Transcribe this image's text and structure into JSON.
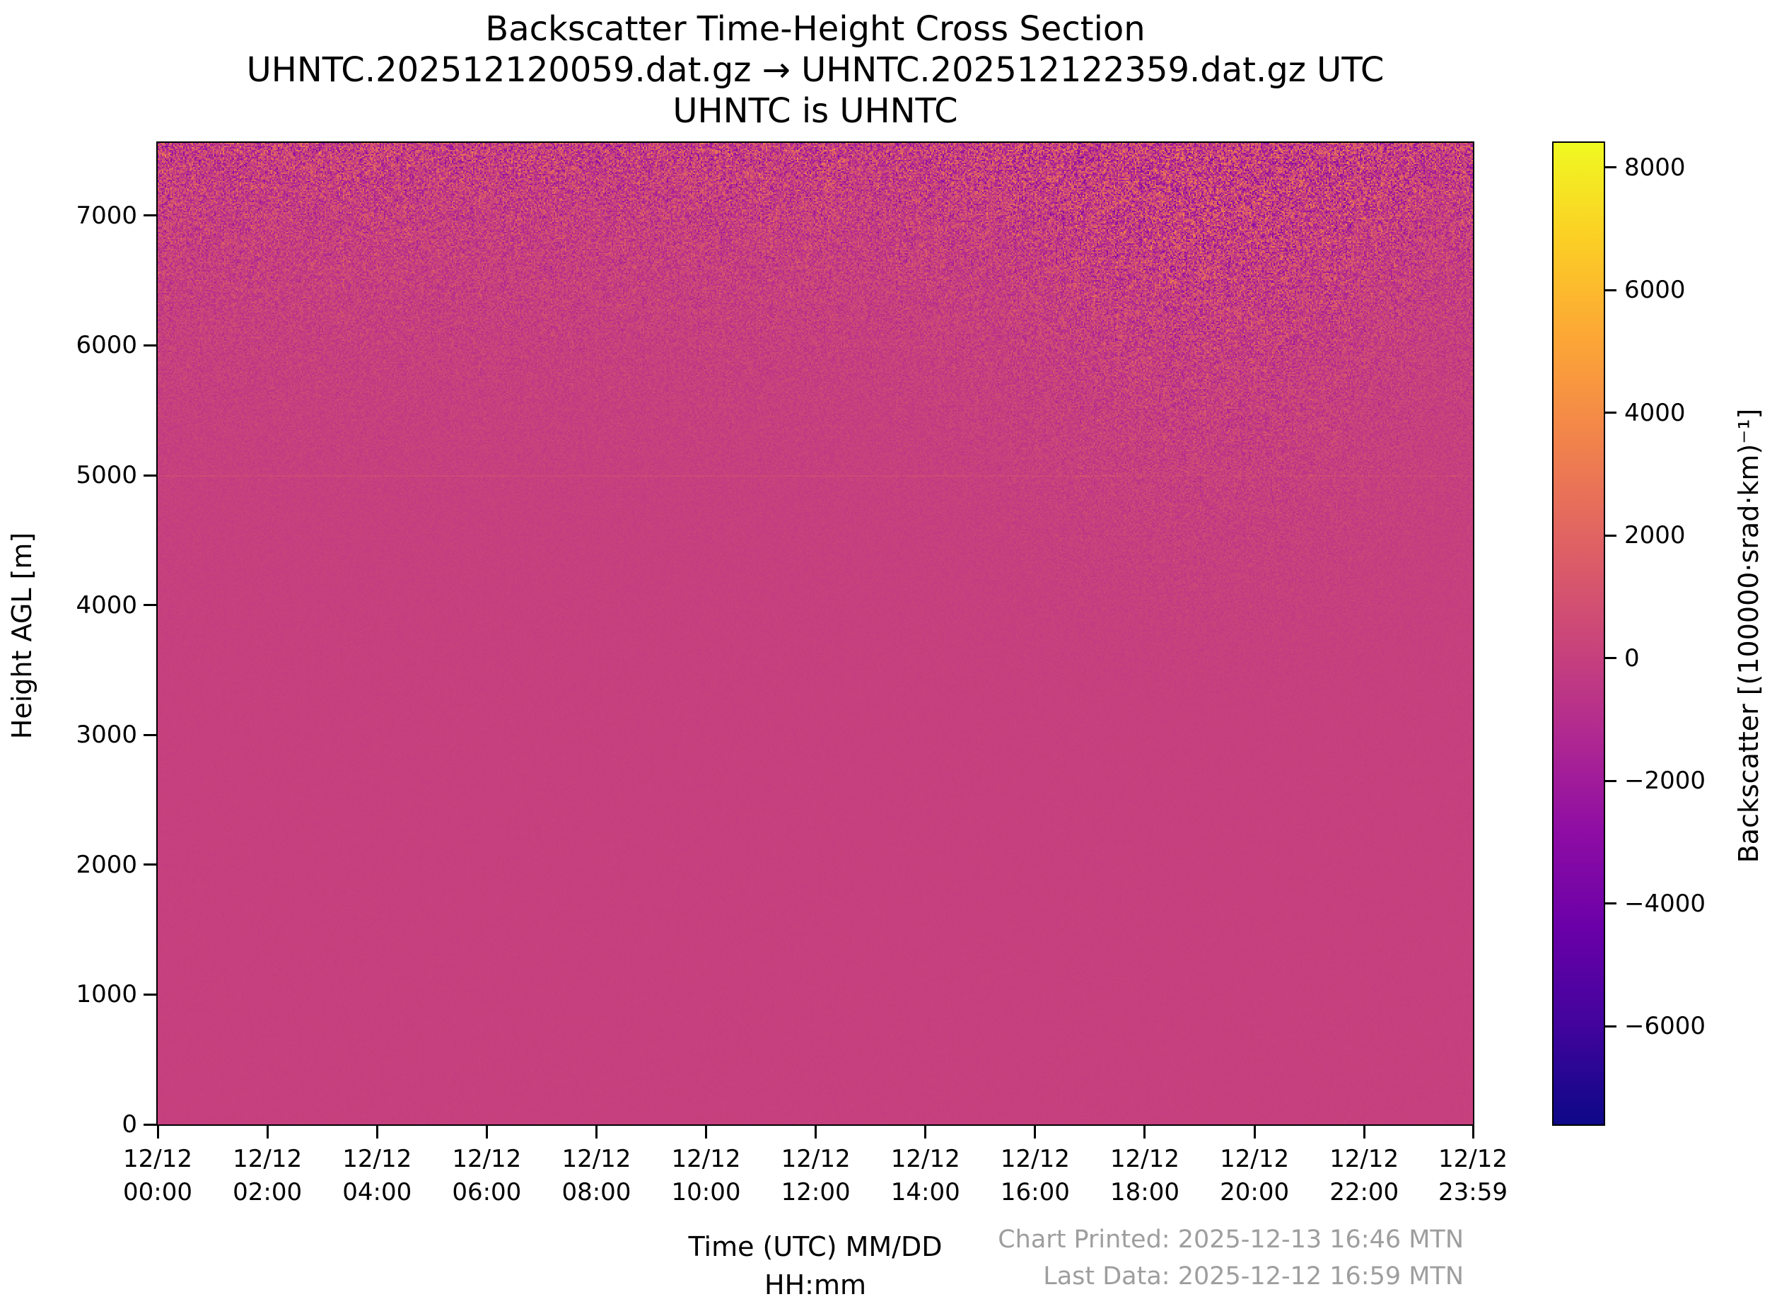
{
  "chart_data": {
    "type": "heatmap",
    "title": "Backscatter Time-Height Cross Section",
    "subtitle": "UHNTC.202512120059.dat.gz → UHNTC.202512122359.dat.gz UTC",
    "subtitle2": "UHNTC is UHNTC",
    "xlabel_line1": "Time (UTC) MM/DD",
    "xlabel_line2": "HH:mm",
    "ylabel": "Height AGL [m]",
    "ylim": [
      0,
      7560
    ],
    "xlim_hours": [
      0,
      23.983
    ],
    "grid": false,
    "y_ticks": [
      0,
      1000,
      2000,
      3000,
      4000,
      5000,
      6000,
      7000
    ],
    "y_tick_labels": [
      "0",
      "1000",
      "2000",
      "3000",
      "4000",
      "5000",
      "6000",
      "7000"
    ],
    "x_ticks": [
      {
        "date": "12/12",
        "time": "00:00",
        "hours": 0
      },
      {
        "date": "12/12",
        "time": "02:00",
        "hours": 2
      },
      {
        "date": "12/12",
        "time": "04:00",
        "hours": 4
      },
      {
        "date": "12/12",
        "time": "06:00",
        "hours": 6
      },
      {
        "date": "12/12",
        "time": "08:00",
        "hours": 8
      },
      {
        "date": "12/12",
        "time": "10:00",
        "hours": 10
      },
      {
        "date": "12/12",
        "time": "12:00",
        "hours": 12
      },
      {
        "date": "12/12",
        "time": "14:00",
        "hours": 14
      },
      {
        "date": "12/12",
        "time": "16:00",
        "hours": 16
      },
      {
        "date": "12/12",
        "time": "18:00",
        "hours": 18
      },
      {
        "date": "12/12",
        "time": "20:00",
        "hours": 20
      },
      {
        "date": "12/12",
        "time": "22:00",
        "hours": 22
      },
      {
        "date": "12/12",
        "time": "23:59",
        "hours": 23.983
      }
    ],
    "colorbar": {
      "label": "Backscatter [(100000·srad·km)⁻¹]",
      "tick_values": [
        8000,
        6000,
        4000,
        2000,
        0,
        -2000,
        -4000,
        -6000
      ],
      "tick_labels": [
        "8000",
        "6000",
        "4000",
        "2000",
        "0",
        "−2000",
        "−4000",
        "−6000"
      ],
      "vmin": -7600,
      "vmax": 8400,
      "colormap": "plasma",
      "stops": [
        "#0d0887",
        "#41049d",
        "#6a00a8",
        "#8f0da4",
        "#b12a90",
        "#cc4778",
        "#e16462",
        "#f2844b",
        "#fca636",
        "#fcce25",
        "#f0f921"
      ]
    },
    "field": {
      "base_value": 0,
      "base_color": "#c5407e",
      "noise_description": "speckle noise amplitude grows with altitude; strongest above ~6500 m everywhere and in an enhanced patch ~14:00–23:00 UTC above ~4500 m",
      "faint_bright_line_height_m": 5000
    },
    "footer": {
      "printed": "Chart Printed: 2025-12-13 16:46 MTN",
      "last_data": "Last Data: 2025-12-12 16:59 MTN",
      "color": "#9e9e9e"
    }
  }
}
